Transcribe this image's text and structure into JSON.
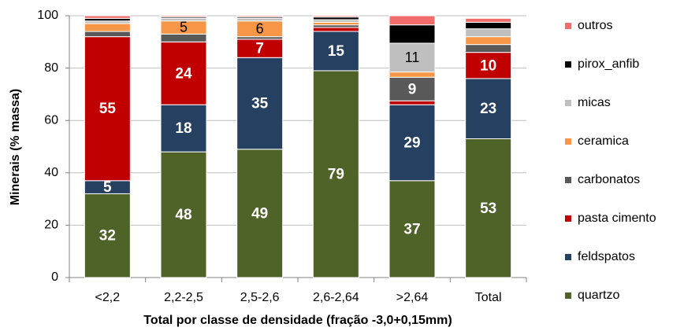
{
  "chart_data": {
    "type": "stacked_bar",
    "x_label": "Total por classe de densidade (fração -3,0+0,15mm)",
    "y_label": "Minerais (% massa)",
    "categories": [
      "<2,2",
      "2,2-2,5",
      "2,5-2,6",
      "2,6-2,64",
      ">2,64",
      "Total"
    ],
    "ylim": [
      0,
      100
    ],
    "yticks": [
      0,
      20,
      40,
      60,
      80,
      100
    ],
    "grid": true,
    "legend": "right",
    "series": [
      {
        "name": "quartzo",
        "color": "#4f6228",
        "label_color": "#ffffff",
        "values": [
          32,
          48,
          49,
          79,
          37,
          53
        ],
        "value_labels": [
          "32",
          "48",
          "49",
          "79",
          "37",
          "53"
        ]
      },
      {
        "name": "feldspatos",
        "color": "#254061",
        "label_color": "#ffffff",
        "values": [
          5,
          18,
          35,
          15,
          29,
          23
        ],
        "value_labels": [
          "5",
          "18",
          "35",
          "15",
          "29",
          "23"
        ]
      },
      {
        "name": "pasta cimento",
        "color": "#c00000",
        "label_color": "#ffffff",
        "values": [
          55,
          24,
          7,
          1.5,
          1.5,
          10
        ],
        "value_labels": [
          "55",
          "24",
          "7",
          null,
          null,
          "10"
        ]
      },
      {
        "name": "carbonatos",
        "color": "#595959",
        "label_color": "#ffffff",
        "values": [
          2,
          3,
          1,
          1,
          9,
          3
        ],
        "value_labels": [
          null,
          null,
          null,
          null,
          "9",
          null
        ]
      },
      {
        "name": "ceramica",
        "color": "#f79646",
        "label_color": "#000000",
        "values": [
          3,
          5,
          6,
          1,
          2,
          3
        ],
        "value_labels": [
          null,
          "5",
          "6",
          null,
          null,
          null
        ]
      },
      {
        "name": "micas",
        "color": "#bfbfbf",
        "label_color": "#000000",
        "values": [
          1,
          1,
          1,
          1,
          11,
          3
        ],
        "value_labels": [
          null,
          null,
          null,
          null,
          "11",
          null
        ]
      },
      {
        "name": "pirox_anfib",
        "color": "#000000",
        "label_color": "#ffffff",
        "values": [
          1,
          0.5,
          0.5,
          1,
          7,
          2.5
        ]
      },
      {
        "name": "outros",
        "color": "#f26c6c",
        "label_color": "#ffffff",
        "values": [
          1,
          0.5,
          0.5,
          0.5,
          3.5,
          1.5
        ]
      }
    ]
  }
}
